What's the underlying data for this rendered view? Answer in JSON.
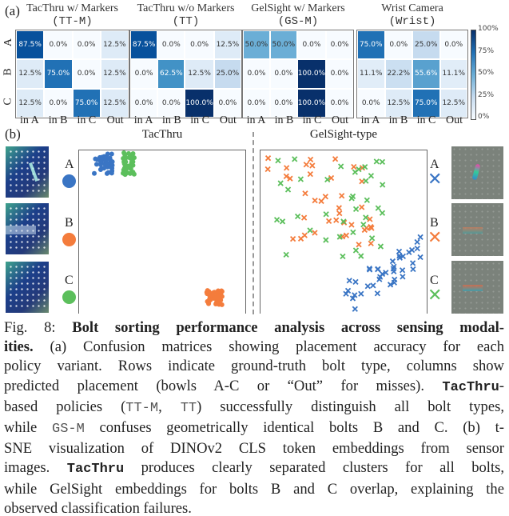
{
  "panel_a_label": "(a)",
  "panel_b_label": "(b)",
  "matrices": [
    {
      "title": "TacThru w/ Markers",
      "abbr": "(TT-M)",
      "values": [
        [
          87.5,
          0.0,
          0.0,
          12.5
        ],
        [
          12.5,
          75.0,
          0.0,
          12.5
        ],
        [
          12.5,
          0.0,
          75.0,
          12.5
        ]
      ]
    },
    {
      "title": "TacThru w/o Markers",
      "abbr": "(TT)",
      "values": [
        [
          87.5,
          0.0,
          0.0,
          12.5
        ],
        [
          0.0,
          62.5,
          12.5,
          25.0
        ],
        [
          0.0,
          0.0,
          100.0,
          0.0
        ]
      ]
    },
    {
      "title": "GelSight w/ Markers",
      "abbr": "(GS-M)",
      "values": [
        [
          50.0,
          50.0,
          0.0,
          0.0
        ],
        [
          0.0,
          0.0,
          100.0,
          0.0
        ],
        [
          0.0,
          0.0,
          100.0,
          0.0
        ]
      ]
    },
    {
      "title": "Wrist Camera",
      "abbr": "(Wrist)",
      "values": [
        [
          75.0,
          0.0,
          25.0,
          0.0
        ],
        [
          11.1,
          22.2,
          55.6,
          11.1
        ],
        [
          0.0,
          12.5,
          75.0,
          12.5
        ]
      ]
    }
  ],
  "columns": [
    "in A",
    "in B",
    "in C",
    "Out"
  ],
  "rows": [
    "A",
    "B",
    "C"
  ],
  "colorbar_ticks": [
    "100%",
    "75%",
    "50%",
    "25%",
    "0%"
  ],
  "tsne": {
    "left_title": "TacThru",
    "right_title": "GelSight-type",
    "classes": [
      {
        "label": "A",
        "color": "#3a75c4"
      },
      {
        "label": "B",
        "color": "#f47c3c"
      },
      {
        "label": "C",
        "color": "#5cbf5c"
      }
    ]
  },
  "caption_lines": [
    [
      {
        "t": "Fig. 8: ",
        "s": ""
      },
      {
        "t": "Bolt sorting performance analysis across sensing modal-",
        "s": "b"
      }
    ],
    [
      {
        "t": "ities.",
        "s": "b"
      },
      {
        "t": " (a) Confusion matrices showing placement accuracy for each",
        "s": ""
      }
    ],
    [
      {
        "t": "policy variant. Rows indicate ground-truth bolt type, columns show",
        "s": ""
      }
    ],
    [
      {
        "t": "predicted placement (bowls A-C or “Out” for misses). ",
        "s": ""
      },
      {
        "t": "TacThru",
        "s": "bm"
      },
      {
        "t": "-",
        "s": ""
      }
    ],
    [
      {
        "t": "based policies (",
        "s": ""
      },
      {
        "t": "TT-M",
        "s": "m"
      },
      {
        "t": ", ",
        "s": ""
      },
      {
        "t": "TT",
        "s": "m"
      },
      {
        "t": ") successfully distinguish all bolt types,",
        "s": ""
      }
    ],
    [
      {
        "t": "while ",
        "s": ""
      },
      {
        "t": "GS-M",
        "s": "m"
      },
      {
        "t": " confuses geometrically identical bolts B and C. (b) t-",
        "s": ""
      }
    ],
    [
      {
        "t": "SNE visualization of DINOv2 CLS token embeddings from sensor",
        "s": ""
      }
    ],
    [
      {
        "t": "images. ",
        "s": ""
      },
      {
        "t": "TacThru",
        "s": "bm"
      },
      {
        "t": " produces clearly separated clusters for all bolts,",
        "s": ""
      }
    ],
    [
      {
        "t": "while GelSight embeddings for bolts B and C overlap, explaining the",
        "s": ""
      }
    ],
    [
      {
        "t": "observed classification failures.",
        "s": ""
      }
    ]
  ]
}
